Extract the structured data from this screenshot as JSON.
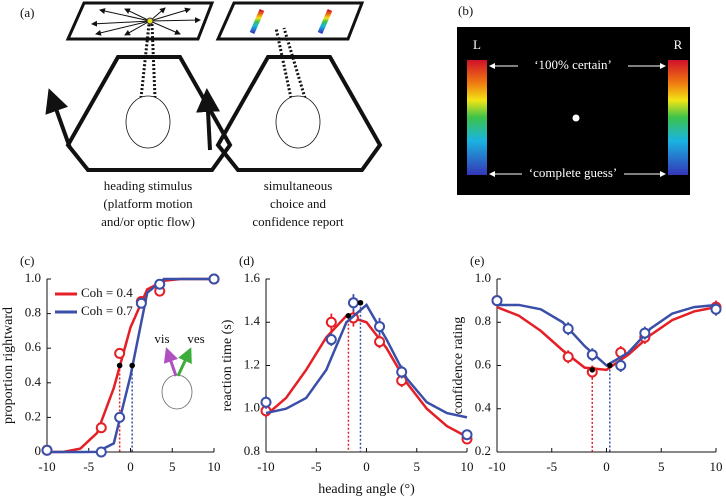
{
  "panels": {
    "a": {
      "label": "(a)",
      "left_caption": [
        "heading stimulus",
        "(platform motion",
        "and/or optic flow)"
      ],
      "right_caption": [
        "simultaneous",
        "choice and",
        "confidence report"
      ]
    },
    "b": {
      "label": "(b)",
      "left_bar": "L",
      "right_bar": "R",
      "top_text": "‘100% certain’",
      "bottom_text": "‘complete guess’"
    }
  },
  "chart_data": [
    {
      "type": "line",
      "panel_label": "(c)",
      "y_label": "proportion rightward",
      "x": [
        -10,
        -3.5,
        -1.3,
        1.3,
        3.5,
        10
      ],
      "fit_x": [
        -10,
        -8,
        -6,
        -4,
        -2,
        0,
        2,
        4,
        6,
        8,
        10
      ],
      "xlim": [
        -10,
        10
      ],
      "xticks": [
        -10,
        -5,
        0,
        5,
        10
      ],
      "ylim": [
        0,
        1
      ],
      "yticks": [
        0,
        0.2,
        0.4,
        0.6,
        0.8,
        {
          "value": 1,
          "label": "1.0"
        }
      ],
      "legend": "upper left",
      "annotations": [
        "vis",
        "ves"
      ],
      "series": [
        {
          "name": "Coh = 0.4",
          "color": "#e41f26",
          "values": [
            0.01,
            0.14,
            0.57,
            0.87,
            0.93,
            1.0
          ],
          "errors": [
            0.01,
            0.03,
            0.03,
            0.03,
            0.02,
            0.01
          ],
          "fit": [
            0.0,
            0.001,
            0.02,
            0.11,
            0.37,
            0.72,
            0.94,
            0.99,
            1.0,
            1.0,
            1.0
          ],
          "pse": [
            -1.3,
            0.5
          ]
        },
        {
          "name": "Coh = 0.7",
          "color": "#3a4fa8",
          "values": [
            0.01,
            0.0,
            0.2,
            0.86,
            0.97,
            1.0
          ],
          "errors": [
            0.01,
            0.01,
            0.03,
            0.03,
            0.02,
            0.01
          ],
          "fit": [
            0.0,
            0.0,
            0.0,
            0.001,
            0.05,
            0.44,
            0.92,
            1.0,
            1.0,
            1.0,
            1.0
          ],
          "pse": [
            0.2,
            0.5
          ]
        }
      ]
    },
    {
      "type": "line",
      "panel_label": "(d)",
      "y_label": "reaction time (s)",
      "x_label": "heading angle (°)",
      "x": [
        -10,
        -3.5,
        -1.3,
        1.3,
        3.5,
        10
      ],
      "fit_x": [
        -10,
        -8,
        -6,
        -4,
        -2,
        0,
        2,
        4,
        6,
        8,
        10
      ],
      "xlim": [
        -10,
        10
      ],
      "xticks": [
        -10,
        -5,
        0,
        5,
        10
      ],
      "ylim": [
        0.8,
        1.6
      ],
      "yticks": [
        0.8,
        {
          "value": 1,
          "label": "1.0"
        },
        1.2,
        1.4,
        1.6
      ],
      "series": [
        {
          "color": "#e41f26",
          "values": [
            0.99,
            1.4,
            1.42,
            1.31,
            1.13,
            0.86
          ],
          "errors": [
            0.03,
            0.04,
            0.04,
            0.03,
            0.03,
            0.02
          ],
          "fit": [
            0.97,
            1.05,
            1.18,
            1.33,
            1.43,
            1.4,
            1.28,
            1.12,
            1.0,
            0.92,
            0.87
          ],
          "pse": [
            -1.8,
            1.43
          ]
        },
        {
          "color": "#3a4fa8",
          "values": [
            1.03,
            1.32,
            1.49,
            1.38,
            1.17,
            0.88
          ],
          "errors": [
            0.03,
            0.03,
            0.04,
            0.04,
            0.03,
            0.02
          ],
          "fit": [
            0.98,
            1.0,
            1.05,
            1.18,
            1.4,
            1.48,
            1.32,
            1.14,
            1.03,
            0.98,
            0.96
          ],
          "pse": [
            -0.6,
            1.49
          ]
        }
      ]
    },
    {
      "type": "line",
      "panel_label": "(e)",
      "y_label": "confidence rating",
      "x": [
        -10,
        -3.5,
        -1.3,
        1.3,
        3.5,
        10
      ],
      "fit_x": [
        -10,
        -8,
        -6,
        -4,
        -2,
        0,
        2,
        4,
        6,
        8,
        10
      ],
      "xlim": [
        -10,
        10
      ],
      "xticks": [
        -10,
        -5,
        0,
        5,
        10
      ],
      "ylim": [
        0.2,
        1
      ],
      "yticks": [
        0.2,
        0.4,
        0.6,
        0.8,
        {
          "value": 1,
          "label": "1.0"
        }
      ],
      "series": [
        {
          "color": "#e41f26",
          "values": [
            0.9,
            0.64,
            0.57,
            0.66,
            0.73,
            0.87
          ],
          "errors": [
            0.02,
            0.03,
            0.03,
            0.03,
            0.03,
            0.03
          ],
          "fit": [
            0.87,
            0.83,
            0.76,
            0.67,
            0.59,
            0.58,
            0.65,
            0.74,
            0.81,
            0.85,
            0.87
          ],
          "pse": [
            -1.3,
            0.58
          ]
        },
        {
          "color": "#3a4fa8",
          "values": [
            0.9,
            0.77,
            0.65,
            0.6,
            0.75,
            0.86
          ],
          "errors": [
            0.02,
            0.03,
            0.03,
            0.03,
            0.03,
            0.03
          ],
          "fit": [
            0.88,
            0.88,
            0.86,
            0.8,
            0.69,
            0.6,
            0.66,
            0.77,
            0.84,
            0.87,
            0.88
          ],
          "pse": [
            0.3,
            0.6
          ]
        }
      ]
    }
  ]
}
